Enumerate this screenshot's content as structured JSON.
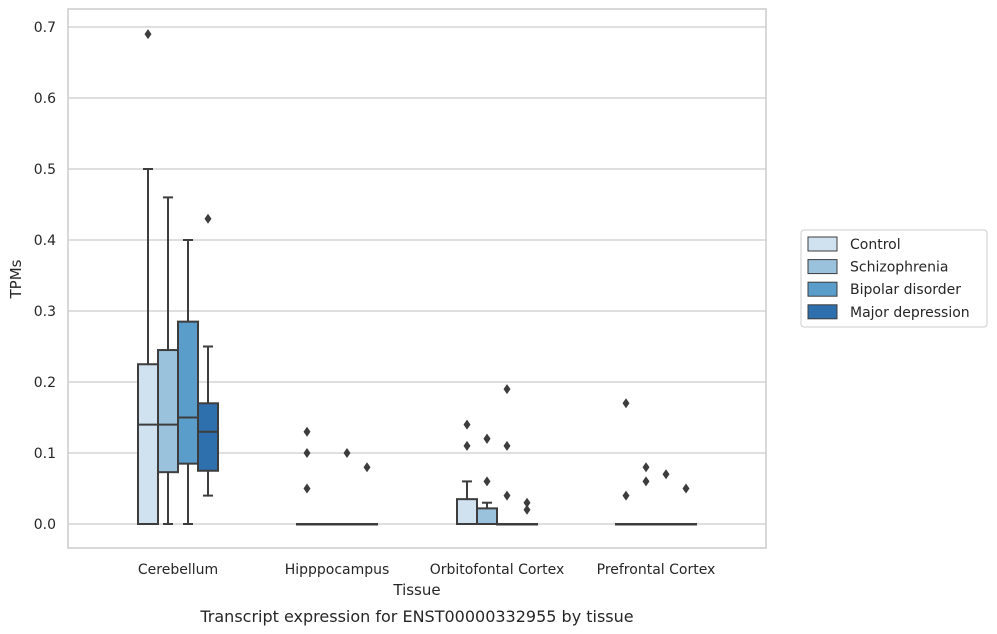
{
  "chart_data": {
    "type": "box",
    "title": "",
    "caption": "Transcript expression for ENST00000332955 by tissue",
    "xlabel": "Tissue",
    "ylabel": "TPMs",
    "ylim": [
      -0.035,
      0.725
    ],
    "yticks": [
      "0.0",
      "0.1",
      "0.2",
      "0.3",
      "0.4",
      "0.5",
      "0.6",
      "0.7"
    ],
    "grid": "horizontal",
    "legend_position": "right",
    "categories": [
      "Cerebellum",
      "Hipppocampus",
      "Orbitofontal Cortex",
      "Prefrontal Cortex"
    ],
    "series": [
      {
        "name": "Control",
        "color": "#d0e1f0",
        "boxes": [
          {
            "whislo": 0.0,
            "q1": 0.0,
            "med": 0.14,
            "q3": 0.225,
            "whishi": 0.5,
            "fliers": [
              0.69
            ]
          },
          {
            "whislo": 0.0,
            "q1": 0.0,
            "med": 0.0,
            "q3": 0.0,
            "whishi": 0.0,
            "fliers": [
              0.13,
              0.1,
              0.05
            ]
          },
          {
            "whislo": 0.0,
            "q1": 0.0,
            "med": 0.0,
            "q3": 0.035,
            "whishi": 0.06,
            "fliers": [
              0.14,
              0.11
            ]
          },
          {
            "whislo": 0.0,
            "q1": 0.0,
            "med": 0.0,
            "q3": 0.0,
            "whishi": 0.0,
            "fliers": [
              0.17,
              0.04
            ]
          }
        ]
      },
      {
        "name": "Schizophrenia",
        "color": "#9ac2dc",
        "boxes": [
          {
            "whislo": 0.0,
            "q1": 0.073,
            "med": 0.14,
            "q3": 0.245,
            "whishi": 0.46,
            "fliers": []
          },
          {
            "whislo": 0.0,
            "q1": 0.0,
            "med": 0.0,
            "q3": 0.0,
            "whishi": 0.0,
            "fliers": []
          },
          {
            "whislo": 0.0,
            "q1": 0.0,
            "med": 0.0,
            "q3": 0.022,
            "whishi": 0.03,
            "fliers": [
              0.12,
              0.12,
              0.06
            ]
          },
          {
            "whislo": 0.0,
            "q1": 0.0,
            "med": 0.0,
            "q3": 0.0,
            "whishi": 0.0,
            "fliers": [
              0.08,
              0.06
            ]
          }
        ]
      },
      {
        "name": "Bipolar disorder",
        "color": "#5a9dcb",
        "boxes": [
          {
            "whislo": 0.0,
            "q1": 0.085,
            "med": 0.15,
            "q3": 0.285,
            "whishi": 0.4,
            "fliers": []
          },
          {
            "whislo": 0.0,
            "q1": 0.0,
            "med": 0.0,
            "q3": 0.0,
            "whishi": 0.0,
            "fliers": [
              0.1
            ]
          },
          {
            "whislo": 0.0,
            "q1": 0.0,
            "med": 0.0,
            "q3": 0.0,
            "whishi": 0.0,
            "fliers": [
              0.19,
              0.11,
              0.04
            ]
          },
          {
            "whislo": 0.0,
            "q1": 0.0,
            "med": 0.0,
            "q3": 0.0,
            "whishi": 0.0,
            "fliers": [
              0.07
            ]
          }
        ]
      },
      {
        "name": "Major depression",
        "color": "#2e6fad",
        "boxes": [
          {
            "whislo": 0.04,
            "q1": 0.075,
            "med": 0.13,
            "q3": 0.17,
            "whishi": 0.25,
            "fliers": [
              0.43
            ]
          },
          {
            "whislo": 0.0,
            "q1": 0.0,
            "med": 0.0,
            "q3": 0.0,
            "whishi": 0.0,
            "fliers": [
              0.08
            ]
          },
          {
            "whislo": 0.0,
            "q1": 0.0,
            "med": 0.0,
            "q3": 0.0,
            "whishi": 0.0,
            "fliers": [
              0.03,
              0.02
            ]
          },
          {
            "whislo": 0.0,
            "q1": 0.0,
            "med": 0.0,
            "q3": 0.0,
            "whishi": 0.0,
            "fliers": [
              0.05
            ]
          }
        ]
      }
    ]
  }
}
